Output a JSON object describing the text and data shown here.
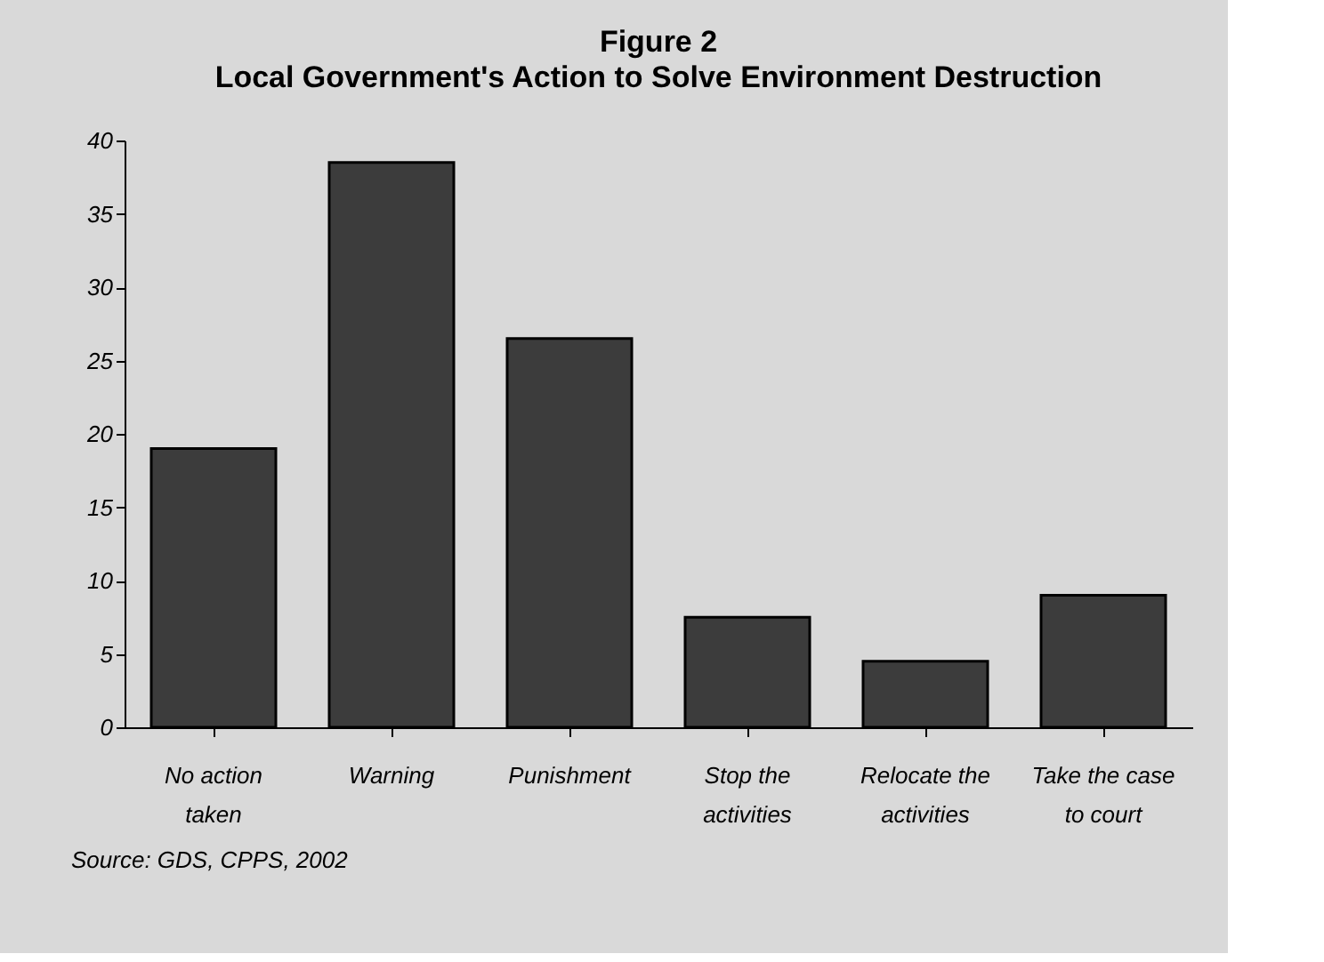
{
  "chart_data": {
    "type": "bar",
    "title": "Figure 2",
    "subtitle": "Local Government's Action to Solve Environment Destruction",
    "categories": [
      "No action taken",
      "Warning",
      "Punishment",
      "Stop the activities",
      "Relocate the activities",
      "Take the case to court"
    ],
    "values": [
      19,
      38.5,
      26.5,
      7.5,
      4.5,
      9
    ],
    "color": "#3c3c3c",
    "ylim": [
      0,
      40
    ],
    "yticks": [
      0,
      5,
      10,
      15,
      20,
      25,
      30,
      35,
      40
    ],
    "annotations": [
      "Source: GDS, CPPS, 2002"
    ]
  }
}
